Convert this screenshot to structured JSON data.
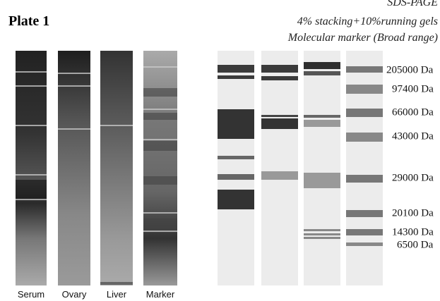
{
  "header": {
    "title": "Plate 1",
    "caption": [
      "SDS-PAGE",
      "4% stacking+10%running gels",
      "Molecular marker (Broad range)"
    ]
  },
  "photo_lanes": [
    "Serum",
    "Ovary",
    "Liver",
    "Marker"
  ],
  "marker_labels": [
    "205000 Da",
    "97400 Da",
    "66000 Da",
    "43000 Da",
    "29000 Da",
    "20100 Da",
    "14300 Da",
    "6500 Da"
  ]
}
